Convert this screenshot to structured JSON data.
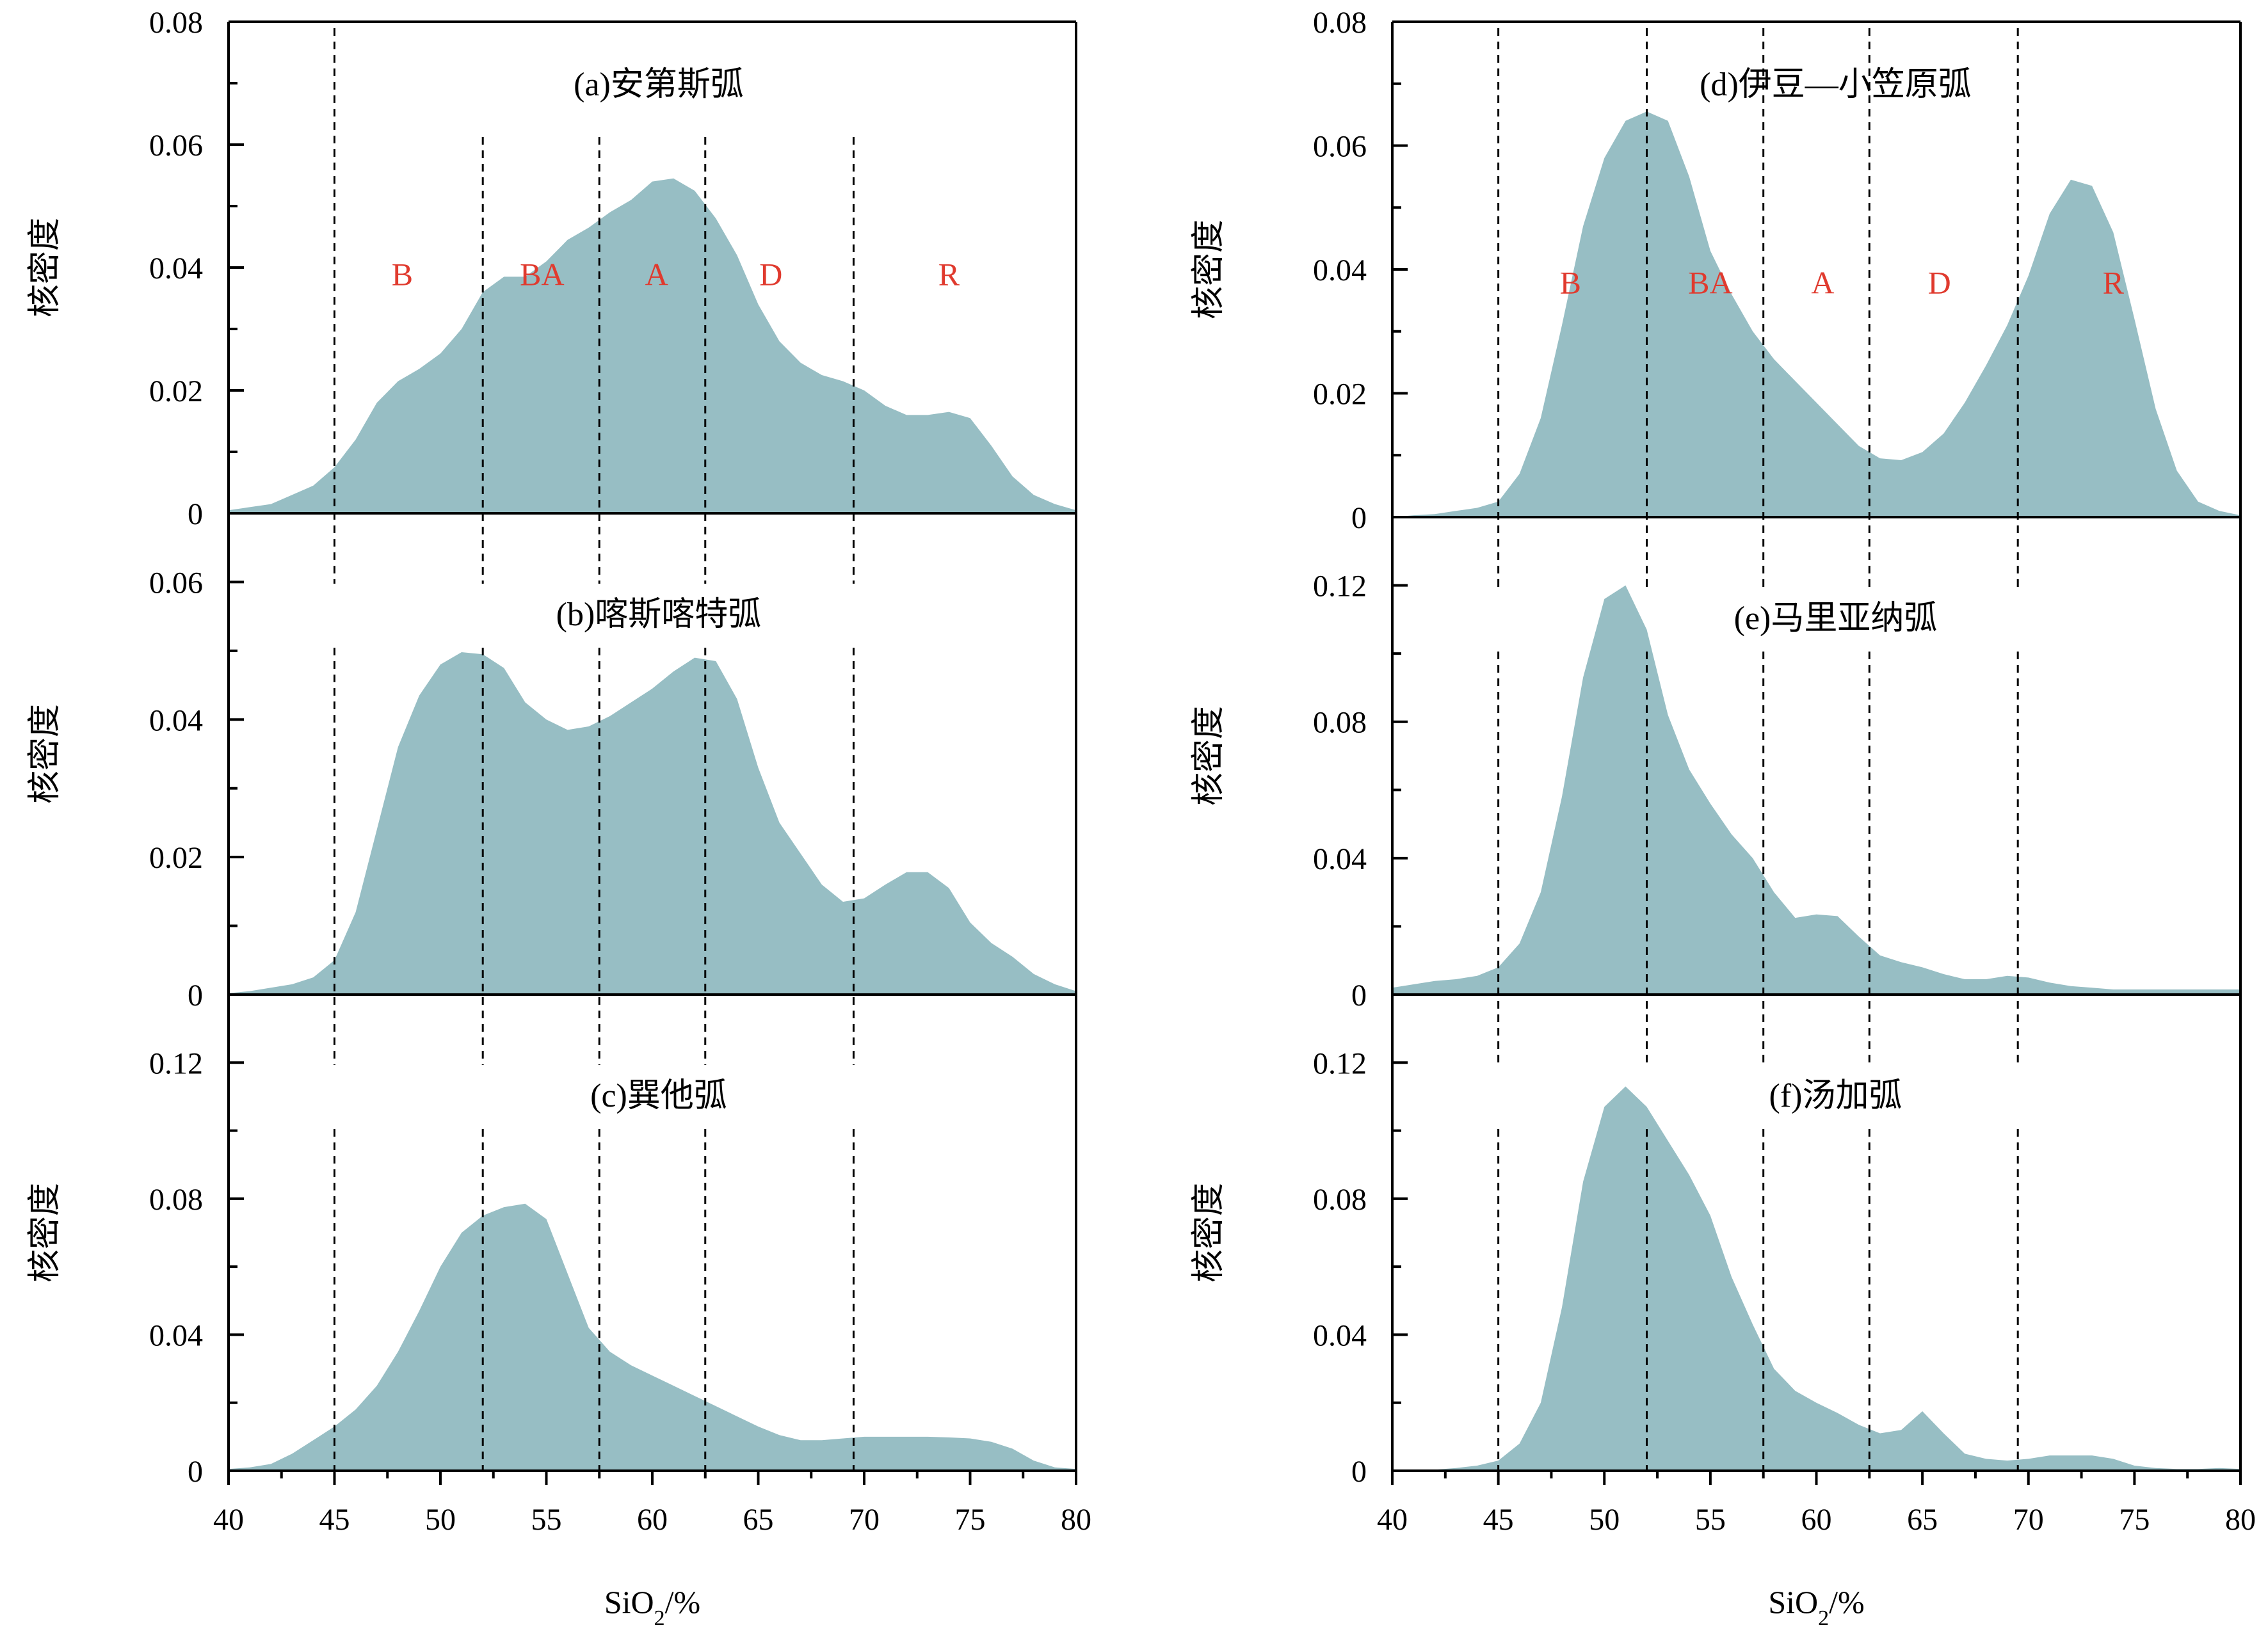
{
  "x_axis": {
    "label_main": "SiO",
    "label_sub": "2",
    "label_tail": "/%",
    "ticks": [
      40,
      45,
      50,
      55,
      60,
      65,
      70,
      75,
      80
    ],
    "xlim": [
      40,
      80
    ]
  },
  "y_axis_label": "核密度",
  "area_color": "#97bec4",
  "region_color": "#e03a2e",
  "boundaries": [
    45,
    52,
    57.5,
    62.5,
    69.5
  ],
  "chart_data": [
    {
      "type": "area",
      "panel": "a",
      "column": "left",
      "row": 0,
      "title": "(a)安第斯弧",
      "ylabel": "核密度",
      "ylim": [
        0,
        0.08
      ],
      "yticks": [
        "0",
        "0.02",
        "0.04",
        "0.06",
        "0.08"
      ],
      "regions": [
        {
          "label": "B",
          "x": 48.2,
          "y": 0.039
        },
        {
          "label": "BA",
          "x": 54.8,
          "y": 0.039
        },
        {
          "label": "A",
          "x": 60.2,
          "y": 0.039
        },
        {
          "label": "D",
          "x": 65.6,
          "y": 0.039
        },
        {
          "label": "R",
          "x": 74.0,
          "y": 0.039
        }
      ],
      "x": [
        40,
        41,
        42,
        43,
        44,
        45,
        46,
        47,
        48,
        49,
        50,
        51,
        52,
        53,
        54,
        55,
        56,
        57,
        58,
        59,
        60,
        61,
        62,
        63,
        64,
        65,
        66,
        67,
        68,
        69,
        70,
        71,
        72,
        73,
        74,
        75,
        76,
        77,
        78,
        79,
        80
      ],
      "y": [
        0.0005,
        0.001,
        0.0015,
        0.003,
        0.0045,
        0.0075,
        0.012,
        0.018,
        0.0215,
        0.0235,
        0.026,
        0.03,
        0.036,
        0.0385,
        0.0385,
        0.041,
        0.0445,
        0.0465,
        0.049,
        0.051,
        0.054,
        0.0545,
        0.0525,
        0.048,
        0.042,
        0.034,
        0.028,
        0.0245,
        0.0225,
        0.0215,
        0.02,
        0.0175,
        0.016,
        0.016,
        0.0165,
        0.0155,
        0.011,
        0.006,
        0.003,
        0.0015,
        0.0005
      ]
    },
    {
      "type": "area",
      "panel": "b",
      "column": "left",
      "row": 1,
      "title": "(b)喀斯喀特弧",
      "ylabel": "核密度",
      "ylim": [
        0,
        0.07
      ],
      "yticks": [
        "0",
        "0.02",
        "0.04",
        "0.06"
      ],
      "regions": [],
      "x": [
        40,
        41,
        42,
        43,
        44,
        45,
        46,
        47,
        48,
        49,
        50,
        51,
        52,
        53,
        54,
        55,
        56,
        57,
        58,
        59,
        60,
        61,
        62,
        63,
        64,
        65,
        66,
        67,
        68,
        69,
        70,
        71,
        72,
        73,
        74,
        75,
        76,
        77,
        78,
        79,
        80
      ],
      "y": [
        0.0002,
        0.0005,
        0.001,
        0.0015,
        0.0025,
        0.005,
        0.012,
        0.024,
        0.036,
        0.0435,
        0.048,
        0.0498,
        0.0495,
        0.0475,
        0.0425,
        0.04,
        0.0385,
        0.039,
        0.0405,
        0.0425,
        0.0445,
        0.047,
        0.049,
        0.0485,
        0.043,
        0.033,
        0.025,
        0.0205,
        0.016,
        0.0135,
        0.014,
        0.016,
        0.0178,
        0.0178,
        0.0155,
        0.0105,
        0.0075,
        0.0055,
        0.003,
        0.0015,
        0.0005
      ]
    },
    {
      "type": "area",
      "panel": "c",
      "column": "left",
      "row": 2,
      "title": "(c)巽他弧",
      "ylabel": "核密度",
      "ylim": [
        0,
        0.14
      ],
      "yticks": [
        "0",
        "0.04",
        "0.08",
        "0.12"
      ],
      "regions": [],
      "x": [
        40,
        41,
        42,
        43,
        44,
        45,
        46,
        47,
        48,
        49,
        50,
        51,
        52,
        53,
        54,
        55,
        56,
        57,
        58,
        59,
        60,
        61,
        62,
        63,
        64,
        65,
        66,
        67,
        68,
        69,
        70,
        71,
        72,
        73,
        74,
        75,
        76,
        77,
        78,
        79,
        80
      ],
      "y": [
        0.0005,
        0.001,
        0.002,
        0.005,
        0.009,
        0.013,
        0.018,
        0.025,
        0.035,
        0.047,
        0.06,
        0.07,
        0.075,
        0.0775,
        0.0785,
        0.074,
        0.058,
        0.042,
        0.035,
        0.031,
        0.028,
        0.025,
        0.022,
        0.019,
        0.016,
        0.013,
        0.0105,
        0.009,
        0.009,
        0.0095,
        0.01,
        0.01,
        0.01,
        0.01,
        0.0098,
        0.0095,
        0.0085,
        0.0065,
        0.003,
        0.001,
        0.0005
      ]
    },
    {
      "type": "area",
      "panel": "d",
      "column": "right",
      "row": 0,
      "title": "(d)伊豆—小笠原弧",
      "ylabel": "核密度",
      "ylim": [
        0,
        0.08
      ],
      "yticks": [
        "0",
        "0.02",
        "0.04",
        "0.06",
        "0.08"
      ],
      "regions": [
        {
          "label": "B",
          "x": 48.4,
          "y": 0.038
        },
        {
          "label": "BA",
          "x": 55.0,
          "y": 0.038
        },
        {
          "label": "A",
          "x": 60.3,
          "y": 0.038
        },
        {
          "label": "D",
          "x": 65.8,
          "y": 0.038
        },
        {
          "label": "R",
          "x": 74.0,
          "y": 0.038
        }
      ],
      "x": [
        40,
        41,
        42,
        43,
        44,
        45,
        46,
        47,
        48,
        49,
        50,
        51,
        52,
        53,
        54,
        55,
        56,
        57,
        58,
        59,
        60,
        61,
        62,
        63,
        64,
        65,
        66,
        67,
        68,
        69,
        70,
        71,
        72,
        73,
        74,
        75,
        76,
        77,
        78,
        79,
        80
      ],
      "y": [
        0,
        0.0003,
        0.0005,
        0.001,
        0.0015,
        0.0025,
        0.007,
        0.016,
        0.031,
        0.047,
        0.058,
        0.064,
        0.0655,
        0.064,
        0.055,
        0.043,
        0.036,
        0.03,
        0.0255,
        0.022,
        0.0185,
        0.015,
        0.0115,
        0.0095,
        0.0092,
        0.0105,
        0.0135,
        0.0185,
        0.0245,
        0.031,
        0.039,
        0.049,
        0.0545,
        0.0535,
        0.046,
        0.032,
        0.0175,
        0.0075,
        0.0025,
        0.001,
        0.0003
      ]
    },
    {
      "type": "area",
      "panel": "e",
      "column": "right",
      "row": 1,
      "title": "(e)马里亚纳弧",
      "ylabel": "核密度",
      "ylim": [
        0,
        0.14
      ],
      "yticks": [
        "0",
        "0.04",
        "0.08",
        "0.12"
      ],
      "regions": [],
      "x": [
        40,
        41,
        42,
        43,
        44,
        45,
        46,
        47,
        48,
        49,
        50,
        51,
        52,
        53,
        54,
        55,
        56,
        57,
        58,
        59,
        60,
        61,
        62,
        63,
        64,
        65,
        66,
        67,
        68,
        69,
        70,
        71,
        72,
        73,
        74,
        75,
        76,
        77,
        78,
        79,
        80
      ],
      "y": [
        0.002,
        0.003,
        0.004,
        0.0045,
        0.0055,
        0.008,
        0.015,
        0.03,
        0.058,
        0.093,
        0.116,
        0.12,
        0.107,
        0.082,
        0.066,
        0.056,
        0.047,
        0.04,
        0.03,
        0.0225,
        0.0235,
        0.023,
        0.017,
        0.0115,
        0.0095,
        0.008,
        0.006,
        0.0045,
        0.0045,
        0.0055,
        0.005,
        0.0035,
        0.0025,
        0.002,
        0.0015,
        0.0015,
        0.0015,
        0.0015,
        0.0015,
        0.0015,
        0.0015
      ]
    },
    {
      "type": "area",
      "panel": "f",
      "column": "right",
      "row": 2,
      "title": "(f)汤加弧",
      "ylabel": "核密度",
      "ylim": [
        0,
        0.14
      ],
      "yticks": [
        "0",
        "0.04",
        "0.08",
        "0.12"
      ],
      "regions": [],
      "x": [
        40,
        41,
        42,
        43,
        44,
        45,
        46,
        47,
        48,
        49,
        50,
        51,
        52,
        53,
        54,
        55,
        56,
        57,
        58,
        59,
        60,
        61,
        62,
        63,
        64,
        65,
        66,
        67,
        68,
        69,
        70,
        71,
        72,
        73,
        74,
        75,
        76,
        77,
        78,
        79,
        80
      ],
      "y": [
        0,
        0,
        0.0003,
        0.0008,
        0.0015,
        0.003,
        0.008,
        0.02,
        0.048,
        0.085,
        0.107,
        0.113,
        0.107,
        0.097,
        0.087,
        0.075,
        0.057,
        0.043,
        0.03,
        0.0235,
        0.02,
        0.017,
        0.0135,
        0.011,
        0.012,
        0.0175,
        0.011,
        0.005,
        0.0035,
        0.003,
        0.0035,
        0.0045,
        0.0045,
        0.0045,
        0.0035,
        0.0015,
        0.0008,
        0.0005,
        0.0005,
        0.0008,
        0.0005
      ]
    }
  ]
}
